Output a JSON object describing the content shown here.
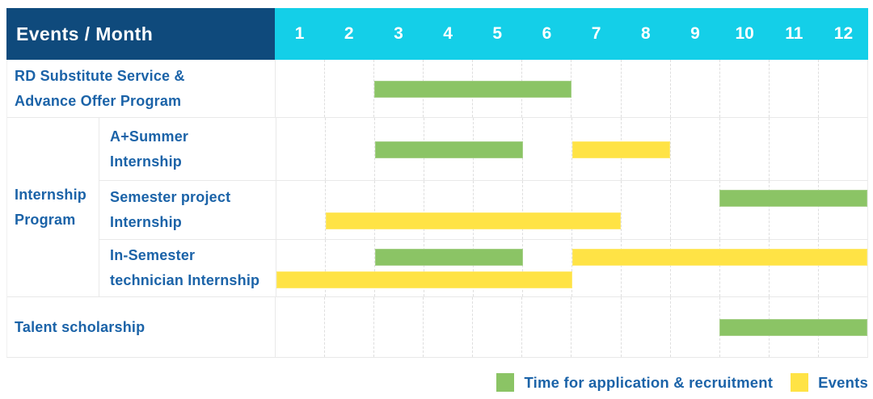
{
  "header": {
    "title": "Events / Month",
    "months": [
      "1",
      "2",
      "3",
      "4",
      "5",
      "6",
      "7",
      "8",
      "9",
      "10",
      "11",
      "12"
    ]
  },
  "colors": {
    "navy": "#0f4a7c",
    "cyan": "#14cfe8",
    "green": "#8bc465",
    "yellow": "#ffe345",
    "blue": "#1b63a8"
  },
  "chart_data": {
    "type": "gantt",
    "title": "Events / Month",
    "x_axis": {
      "label": "Month",
      "ticks": [
        "1",
        "2",
        "3",
        "4",
        "5",
        "6",
        "7",
        "8",
        "9",
        "10",
        "11",
        "12"
      ],
      "range": [
        1,
        12
      ]
    },
    "grid": "vertical dashed month gridlines",
    "legend_position": "bottom-right",
    "rows": [
      {
        "id": "rd-substitute-service",
        "label": "RD Substitute Service &\nAdvance Offer Program",
        "plain_label": "RD Substitute Service & Advance Offer Program",
        "group": null,
        "lines": 1,
        "bars": [
          {
            "color": "green",
            "meaning": "Time for application & recruitment",
            "start": 3,
            "end": 6,
            "line": 0
          }
        ]
      },
      {
        "id": "a-summer-internship",
        "label": "A+Summer\nInternship",
        "plain_label": "A+Summer Internship",
        "group": "Internship Program",
        "lines": 1,
        "bars": [
          {
            "color": "green",
            "meaning": "Time for application & recruitment",
            "start": 3,
            "end": 5,
            "line": 0
          },
          {
            "color": "yellow",
            "meaning": "Events",
            "start": 7,
            "end": 8,
            "line": 0
          }
        ]
      },
      {
        "id": "semester-project-internship",
        "label": "Semester project\nInternship",
        "plain_label": "Semester project Internship",
        "group": "Internship Program",
        "lines": 2,
        "bars": [
          {
            "color": "green",
            "meaning": "Time for application & recruitment",
            "start": 10,
            "end": 12,
            "line": 0
          },
          {
            "color": "yellow",
            "meaning": "Events",
            "start": 2,
            "end": 7,
            "line": 1
          }
        ]
      },
      {
        "id": "in-semester-technician-internship",
        "label": "In-Semester\ntechnician Internship",
        "plain_label": "In-Semester technician Internship",
        "group": "Internship Program",
        "lines": 2,
        "bars": [
          {
            "color": "green",
            "meaning": "Time for application & recruitment",
            "start": 3,
            "end": 5,
            "line": 0
          },
          {
            "color": "yellow",
            "meaning": "Events",
            "start": 7,
            "end": 12,
            "line": 0
          },
          {
            "color": "yellow",
            "meaning": "Events",
            "start": 1,
            "end": 6,
            "line": 1
          }
        ]
      },
      {
        "id": "talent-scholarship",
        "label": "Talent scholarship",
        "plain_label": "Talent scholarship",
        "group": null,
        "lines": 1,
        "bars": [
          {
            "color": "green",
            "meaning": "Time for application & recruitment",
            "start": 10,
            "end": 12,
            "line": 0
          }
        ]
      }
    ],
    "group": {
      "label": "Internship\nProgram",
      "plain_label": "Internship Program",
      "row_ids": [
        "a-summer-internship",
        "semester-project-internship",
        "in-semester-technician-internship"
      ]
    },
    "legend": [
      {
        "color": "green",
        "hex": "#8bc465",
        "label": "Time for application & recruitment"
      },
      {
        "color": "yellow",
        "hex": "#ffe345",
        "label": "Events"
      }
    ]
  }
}
